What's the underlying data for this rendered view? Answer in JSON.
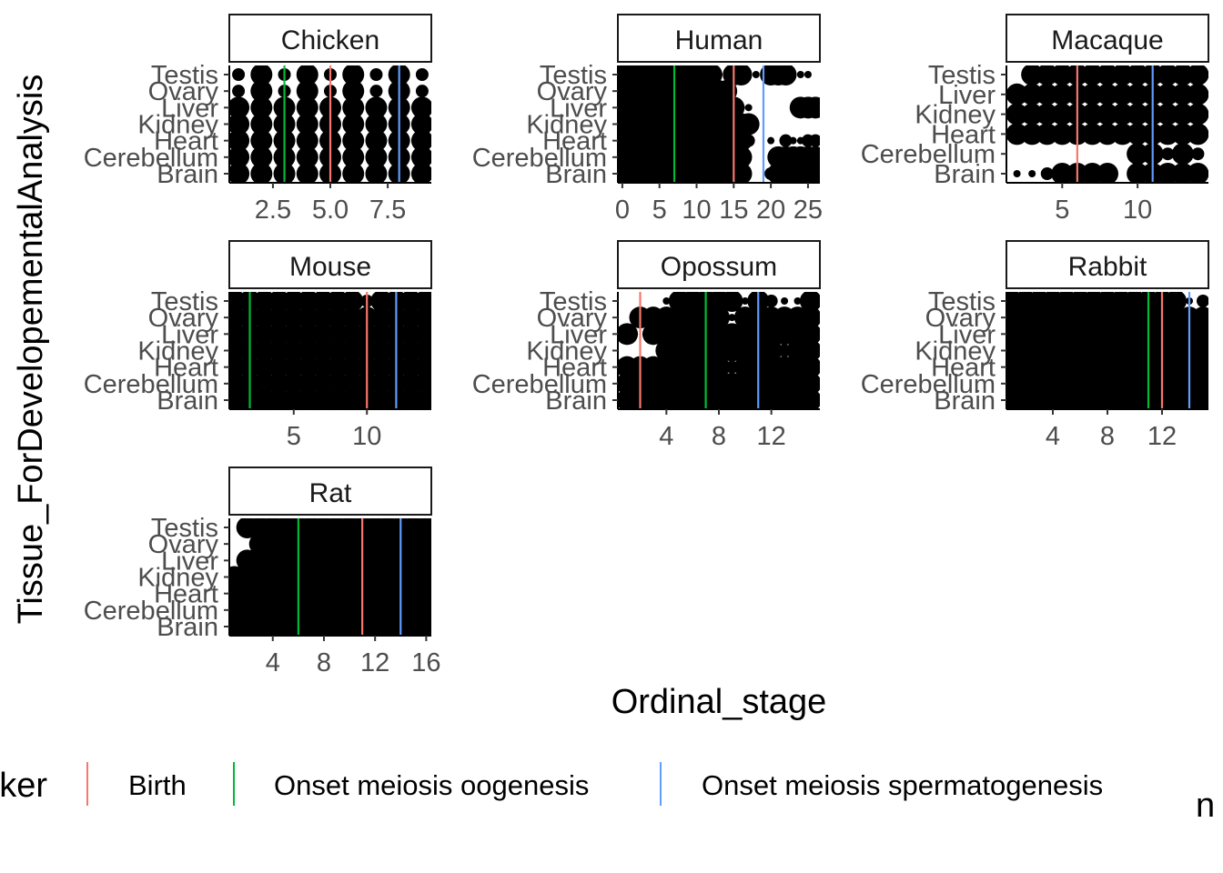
{
  "chart_data": {
    "type": "scatter",
    "xlabel": "Ordinal_stage",
    "ylabel": "Tissue_ForDevelopementalAnalysis",
    "legend": {
      "title_fragment": "ker",
      "size_title_fragment": "n",
      "position": "bottom",
      "entries": [
        {
          "label": "Birth",
          "color": "#F8766D"
        },
        {
          "label": "Onset meiosis oogenesis",
          "color": "#00BA38"
        },
        {
          "label": "Onset meiosis spermatogenesis",
          "color": "#619CFF"
        }
      ]
    },
    "colors": {
      "birth": "#F8766D",
      "oogenesis": "#00BA38",
      "spermatogenesis": "#619CFF",
      "points": "#000000"
    },
    "panels": [
      {
        "species": "Chicken",
        "tissues": [
          "Brain",
          "Cerebellum",
          "Heart",
          "Kidney",
          "Liver",
          "Ovary",
          "Testis"
        ],
        "xlim": [
          0.6,
          9.4
        ],
        "xticks": [
          2.5,
          5.0,
          7.5
        ],
        "xtick_labels": [
          "2.5",
          "5.0",
          "7.5"
        ],
        "stages": [
          1,
          2,
          3,
          4,
          5,
          6,
          7,
          8,
          9
        ],
        "markers": {
          "birth": 5,
          "oogenesis": 3,
          "spermatogenesis": 8
        },
        "point_sizes": [
          [
            3,
            3,
            3,
            3,
            3,
            3,
            3,
            3,
            3
          ],
          [
            3,
            3,
            3,
            3,
            3,
            3,
            3,
            3,
            3
          ],
          [
            3,
            3,
            3,
            3,
            3,
            3,
            3,
            3,
            3
          ],
          [
            3,
            3,
            3,
            3,
            3,
            3,
            3,
            3,
            3
          ],
          [
            3,
            3,
            3,
            3,
            3,
            3,
            3,
            3,
            3
          ],
          [
            2,
            3,
            2,
            3,
            2,
            3,
            2,
            3,
            2
          ],
          [
            2,
            3,
            2,
            3,
            2,
            3,
            2,
            3,
            2
          ]
        ]
      },
      {
        "species": "Human",
        "tissues": [
          "Brain",
          "Cerebellum",
          "Heart",
          "Kidney",
          "Liver",
          "Ovary",
          "Testis"
        ],
        "xlim": [
          -0.6,
          26.6
        ],
        "xticks": [
          0,
          5,
          10,
          15,
          20,
          25
        ],
        "xtick_labels": [
          "0",
          "5",
          "10",
          "15",
          "20",
          "25"
        ],
        "stages": [
          0,
          1,
          2,
          3,
          4,
          5,
          6,
          7,
          8,
          9,
          10,
          11,
          12,
          13,
          14,
          15,
          16,
          17,
          18,
          19,
          20,
          21,
          22,
          23,
          24,
          25,
          26
        ],
        "markers": {
          "birth": 15,
          "oogenesis": 7,
          "spermatogenesis": 19
        },
        "point_sizes": [
          [
            3,
            3,
            3,
            3,
            3,
            3,
            3,
            3,
            3,
            3,
            3,
            3,
            3,
            3,
            3,
            3,
            3,
            0,
            0,
            0,
            2,
            3,
            3,
            3,
            3,
            3,
            3
          ],
          [
            3,
            3,
            3,
            3,
            3,
            3,
            3,
            3,
            3,
            3,
            3,
            3,
            3,
            3,
            3,
            3,
            3,
            0,
            0,
            0,
            0,
            3,
            3,
            3,
            3,
            3,
            3
          ],
          [
            3,
            3,
            3,
            3,
            3,
            3,
            3,
            3,
            3,
            3,
            3,
            3,
            3,
            3,
            3,
            3,
            3,
            2,
            0,
            0,
            1,
            0,
            2,
            1,
            1,
            2,
            2
          ],
          [
            3,
            3,
            3,
            3,
            3,
            3,
            3,
            3,
            3,
            3,
            3,
            3,
            3,
            3,
            3,
            3,
            3,
            3,
            0,
            0,
            0,
            0,
            0,
            0,
            0,
            0,
            0
          ],
          [
            3,
            3,
            3,
            3,
            3,
            3,
            3,
            3,
            3,
            3,
            3,
            3,
            3,
            3,
            3,
            3,
            1,
            1,
            0,
            0,
            0,
            0,
            0,
            0,
            3,
            3,
            3
          ],
          [
            3,
            3,
            3,
            3,
            3,
            3,
            3,
            3,
            3,
            3,
            1,
            3,
            3,
            3,
            3,
            0,
            0,
            0,
            0,
            0,
            0,
            0,
            0,
            0,
            0,
            0,
            0
          ],
          [
            3,
            3,
            3,
            3,
            3,
            3,
            3,
            3,
            3,
            3,
            3,
            3,
            3,
            1,
            0,
            3,
            3,
            0,
            1,
            0,
            3,
            3,
            3,
            0,
            1,
            1,
            0
          ]
        ]
      },
      {
        "species": "Macaque",
        "tissues": [
          "Brain",
          "Cerebellum",
          "Heart",
          "Kidney",
          "Liver",
          "Testis"
        ],
        "xlim": [
          1.3,
          14.7
        ],
        "xticks": [
          5,
          10
        ],
        "xtick_labels": [
          "5",
          "10"
        ],
        "stages": [
          2,
          3,
          4,
          5,
          6,
          7,
          8,
          9,
          10,
          11,
          12,
          13,
          14
        ],
        "markers": {
          "birth": 6,
          "oogenesis": null,
          "spermatogenesis": 11
        },
        "point_sizes": [
          [
            1,
            1,
            2,
            3,
            3,
            3,
            3,
            0,
            3,
            3,
            3,
            3,
            3
          ],
          [
            0,
            0,
            0,
            0,
            0,
            0,
            0,
            0,
            3,
            3,
            2,
            3,
            2
          ],
          [
            3,
            3,
            3,
            3,
            3,
            3,
            3,
            3,
            3,
            3,
            3,
            3,
            3
          ],
          [
            3,
            3,
            3,
            3,
            3,
            3,
            3,
            3,
            3,
            3,
            3,
            3,
            3
          ],
          [
            3,
            3,
            3,
            3,
            3,
            3,
            3,
            3,
            3,
            3,
            3,
            3,
            3
          ],
          [
            0,
            3,
            3,
            3,
            3,
            3,
            3,
            3,
            3,
            3,
            3,
            3,
            3
          ]
        ]
      },
      {
        "species": "Mouse",
        "tissues": [
          "Brain",
          "Cerebellum",
          "Heart",
          "Kidney",
          "Liver",
          "Ovary",
          "Testis"
        ],
        "xlim": [
          0.6,
          14.4
        ],
        "xticks": [
          5,
          10
        ],
        "xtick_labels": [
          "5",
          "10"
        ],
        "stages": [
          1,
          2,
          3,
          4,
          5,
          6,
          7,
          8,
          9,
          10,
          11,
          12,
          13,
          14
        ],
        "markers": {
          "birth": 10,
          "oogenesis": 2,
          "spermatogenesis": 12
        },
        "point_sizes": [
          [
            3,
            3,
            3,
            3,
            3,
            3,
            3,
            3,
            3,
            3,
            3,
            3,
            3,
            3
          ],
          [
            3,
            3,
            3,
            3,
            3,
            3,
            3,
            3,
            3,
            3,
            3,
            3,
            3,
            3
          ],
          [
            3,
            3,
            3,
            3,
            3,
            3,
            3,
            3,
            3,
            3,
            3,
            3,
            3,
            3
          ],
          [
            3,
            3,
            3,
            3,
            3,
            3,
            3,
            3,
            3,
            3,
            3,
            3,
            3,
            3
          ],
          [
            3,
            3,
            3,
            3,
            3,
            3,
            3,
            3,
            3,
            3,
            3,
            3,
            3,
            3
          ],
          [
            3,
            3,
            3,
            3,
            3,
            3,
            3,
            3,
            3,
            3,
            3,
            3,
            3,
            3
          ],
          [
            3,
            3,
            3,
            3,
            3,
            3,
            3,
            3,
            3,
            2,
            3,
            3,
            3,
            3
          ]
        ]
      },
      {
        "species": "Opossum",
        "tissues": [
          "Brain",
          "Cerebellum",
          "Heart",
          "Kidney",
          "Liver",
          "Ovary",
          "Testis"
        ],
        "xlim": [
          0.3,
          15.7
        ],
        "xticks": [
          4,
          8,
          12
        ],
        "xtick_labels": [
          "4",
          "8",
          "12"
        ],
        "stages": [
          1,
          2,
          3,
          4,
          5,
          6,
          7,
          8,
          9,
          10,
          11,
          12,
          13,
          14,
          15
        ],
        "markers": {
          "birth": 2,
          "oogenesis": 7,
          "spermatogenesis": 11
        },
        "point_sizes": [
          [
            3,
            3,
            3,
            3,
            3,
            3,
            3,
            3,
            3,
            3,
            3,
            3,
            3,
            3,
            3
          ],
          [
            3,
            3,
            3,
            3,
            3,
            3,
            3,
            3,
            3,
            3,
            3,
            3,
            3,
            3,
            3
          ],
          [
            3,
            3,
            3,
            3,
            3,
            3,
            3,
            3,
            2,
            3,
            3,
            3,
            3,
            3,
            3
          ],
          [
            0,
            0,
            0,
            3,
            3,
            3,
            3,
            3,
            3,
            3,
            3,
            3,
            2,
            3,
            3
          ],
          [
            3,
            0,
            3,
            3,
            3,
            3,
            3,
            3,
            3,
            3,
            3,
            3,
            3,
            3,
            3
          ],
          [
            0,
            3,
            3,
            3,
            3,
            3,
            3,
            3,
            1,
            3,
            3,
            3,
            3,
            3,
            3
          ],
          [
            0,
            0,
            0,
            1,
            3,
            3,
            3,
            3,
            3,
            1,
            3,
            2,
            1,
            1,
            3
          ]
        ]
      },
      {
        "species": "Rabbit",
        "tissues": [
          "Brain",
          "Cerebellum",
          "Heart",
          "Kidney",
          "Liver",
          "Ovary",
          "Testis"
        ],
        "xlim": [
          0.6,
          15.4
        ],
        "xticks": [
          4,
          8,
          12
        ],
        "xtick_labels": [
          "4",
          "8",
          "12"
        ],
        "stages": [
          1,
          2,
          3,
          4,
          5,
          6,
          7,
          8,
          9,
          10,
          11,
          12,
          13,
          14,
          15
        ],
        "markers": {
          "birth": 12,
          "oogenesis": 11,
          "spermatogenesis": 14
        },
        "point_sizes": [
          [
            3,
            3,
            3,
            3,
            3,
            3,
            3,
            3,
            3,
            3,
            3,
            3,
            3,
            3,
            3
          ],
          [
            3,
            3,
            3,
            3,
            3,
            3,
            3,
            3,
            3,
            3,
            3,
            3,
            3,
            3,
            3
          ],
          [
            3,
            3,
            3,
            3,
            3,
            3,
            3,
            3,
            3,
            3,
            3,
            3,
            3,
            3,
            3
          ],
          [
            3,
            3,
            3,
            3,
            3,
            3,
            3,
            3,
            3,
            3,
            3,
            3,
            3,
            3,
            3
          ],
          [
            3,
            3,
            3,
            3,
            3,
            3,
            3,
            3,
            3,
            3,
            3,
            3,
            3,
            3,
            3
          ],
          [
            3,
            3,
            3,
            3,
            3,
            3,
            3,
            3,
            3,
            3,
            3,
            3,
            3,
            3,
            3
          ],
          [
            3,
            3,
            3,
            3,
            3,
            3,
            3,
            3,
            3,
            3,
            3,
            3,
            3,
            1,
            2
          ]
        ]
      },
      {
        "species": "Rat",
        "tissues": [
          "Brain",
          "Cerebellum",
          "Heart",
          "Kidney",
          "Liver",
          "Ovary",
          "Testis"
        ],
        "xlim": [
          0.6,
          16.4
        ],
        "xticks": [
          4,
          8,
          12,
          16
        ],
        "xtick_labels": [
          "4",
          "8",
          "12",
          "16"
        ],
        "stages": [
          1,
          2,
          3,
          4,
          5,
          6,
          7,
          8,
          9,
          10,
          11,
          12,
          13,
          14,
          15,
          16
        ],
        "markers": {
          "birth": 11,
          "oogenesis": 6,
          "spermatogenesis": 14
        },
        "point_sizes": [
          [
            3,
            3,
            3,
            3,
            3,
            3,
            3,
            3,
            3,
            3,
            3,
            3,
            3,
            3,
            3,
            3
          ],
          [
            3,
            3,
            3,
            3,
            3,
            3,
            3,
            3,
            3,
            3,
            3,
            3,
            3,
            3,
            3,
            3
          ],
          [
            3,
            3,
            3,
            3,
            3,
            3,
            3,
            3,
            3,
            3,
            3,
            3,
            3,
            3,
            3,
            3
          ],
          [
            3,
            3,
            3,
            3,
            3,
            3,
            3,
            3,
            3,
            3,
            3,
            3,
            3,
            3,
            3,
            3
          ],
          [
            0,
            3,
            3,
            3,
            3,
            3,
            3,
            3,
            3,
            3,
            3,
            3,
            3,
            3,
            3,
            3
          ],
          [
            0,
            0,
            3,
            3,
            3,
            3,
            3,
            3,
            3,
            3,
            3,
            3,
            3,
            3,
            3,
            3
          ],
          [
            0,
            3,
            3,
            3,
            3,
            3,
            3,
            3,
            3,
            3,
            3,
            3,
            3,
            3,
            3,
            3
          ]
        ]
      }
    ]
  }
}
